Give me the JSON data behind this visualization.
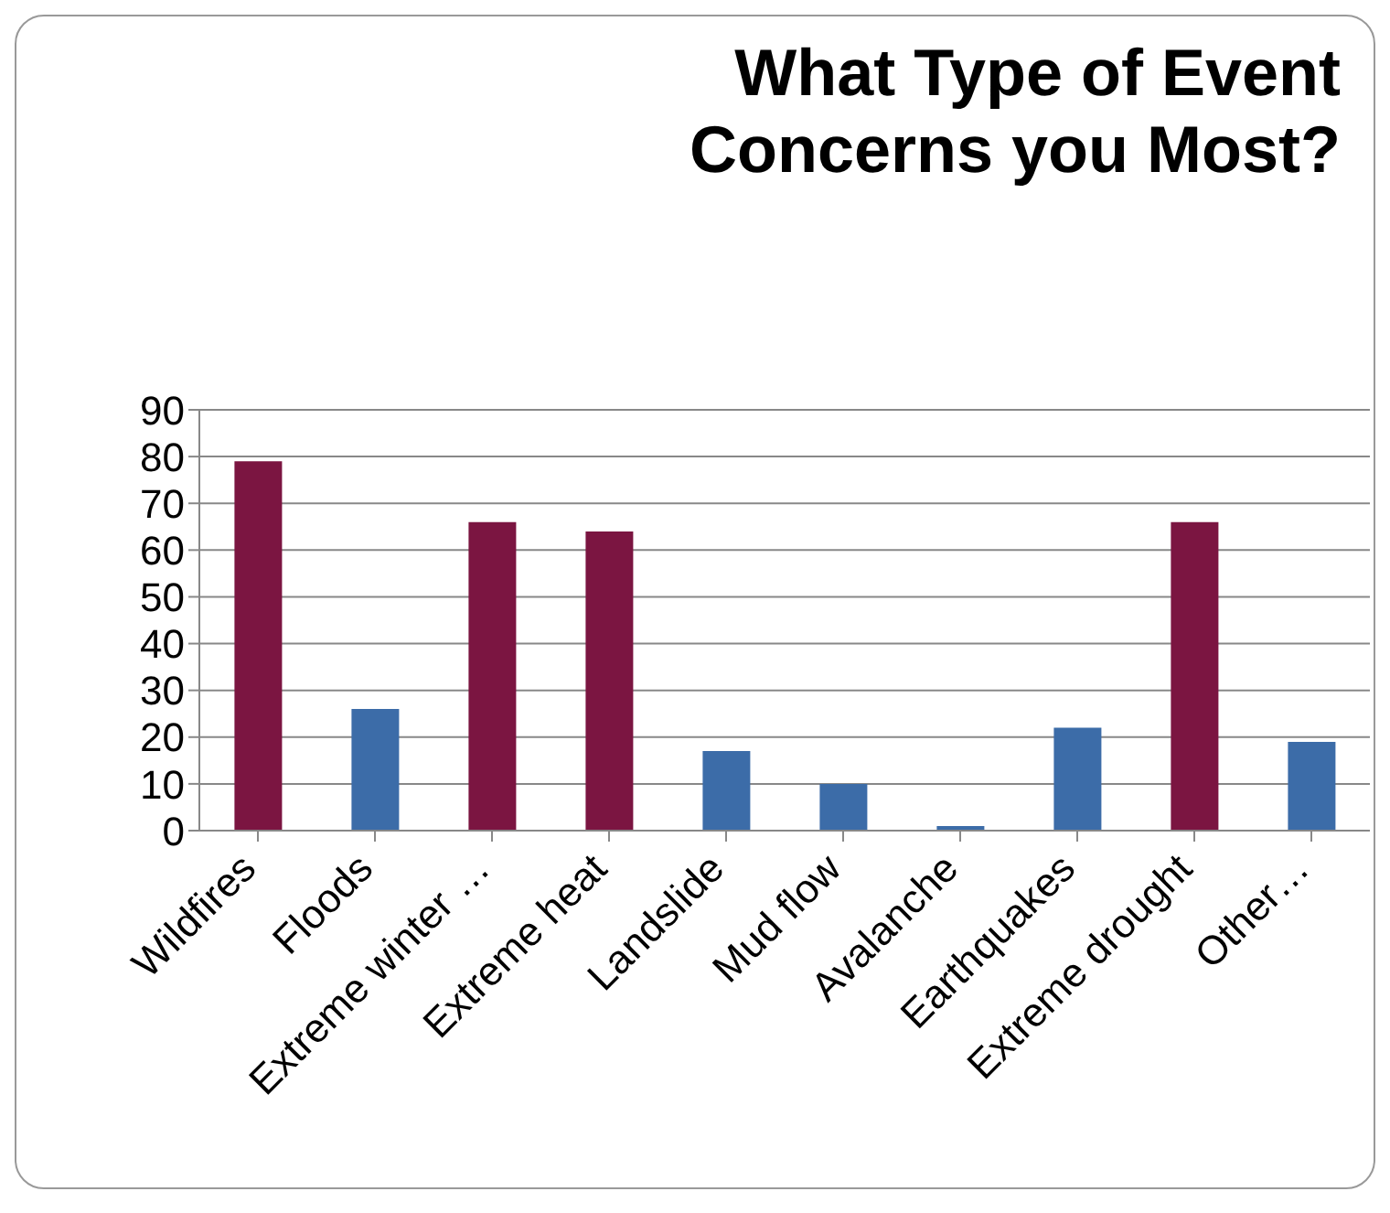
{
  "chart_data": {
    "type": "bar",
    "title": "What Type of Event Concerns you Most?",
    "categories": [
      "Wildfires",
      "Floods",
      "Extreme winter …",
      "Extreme heat",
      "Landslide",
      "Mud flow",
      "Avalanche",
      "Earthquakes",
      "Extreme drought",
      "Other…"
    ],
    "values": [
      79,
      26,
      66,
      64,
      17,
      10,
      1,
      22,
      66,
      19
    ],
    "colors": [
      "#7b1541",
      "#3c6ca8",
      "#7b1541",
      "#7b1541",
      "#3c6ca8",
      "#3c6ca8",
      "#3c6ca8",
      "#3c6ca8",
      "#7b1541",
      "#3c6ca8"
    ],
    "ylim": [
      0,
      90
    ],
    "yticks": [
      0,
      10,
      20,
      30,
      40,
      50,
      60,
      70,
      80,
      90
    ],
    "grid": "y"
  }
}
